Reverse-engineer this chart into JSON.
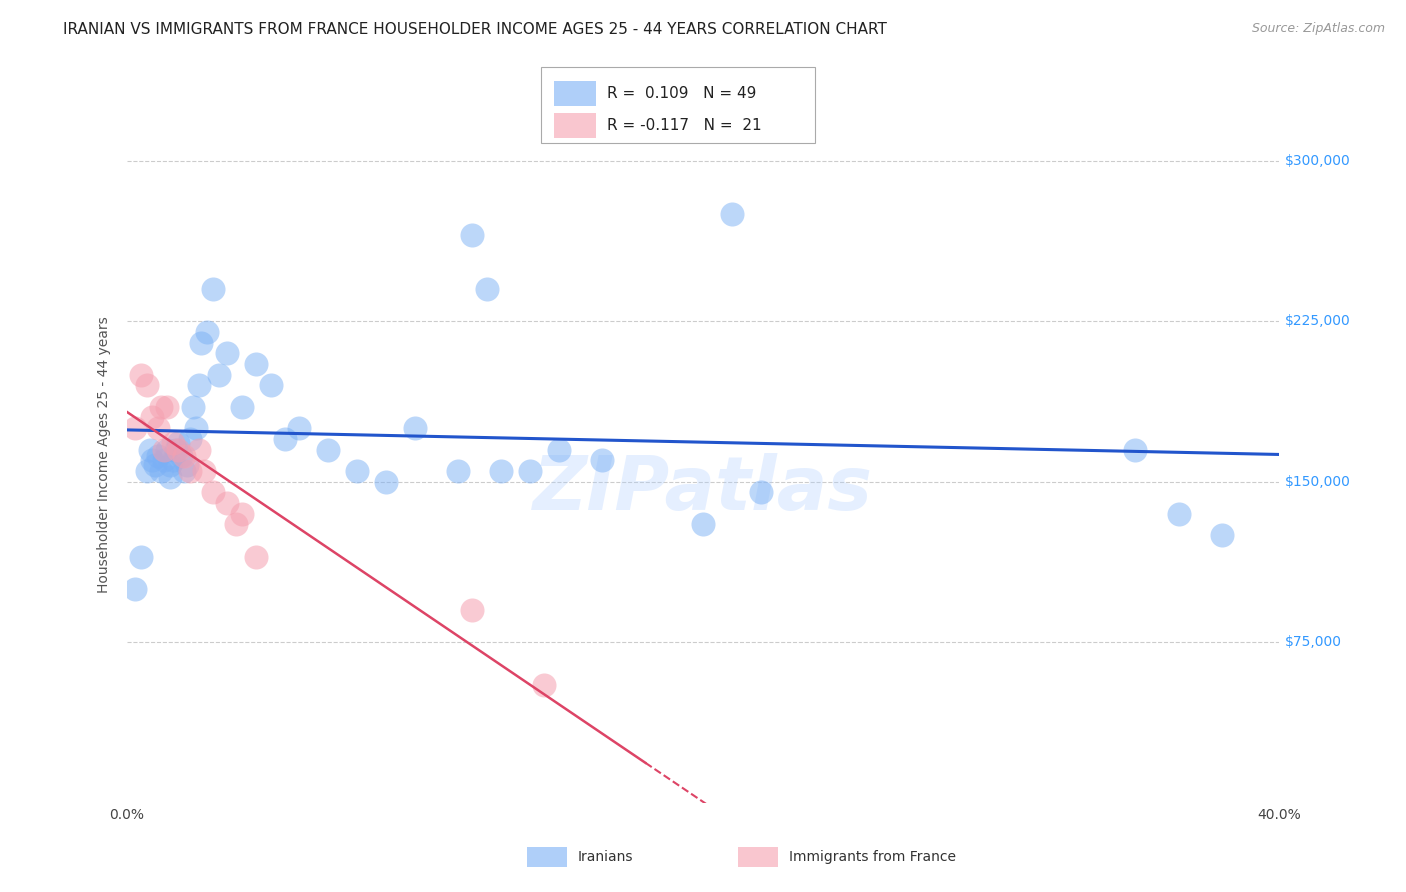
{
  "title": "IRANIAN VS IMMIGRANTS FROM FRANCE HOUSEHOLDER INCOME AGES 25 - 44 YEARS CORRELATION CHART",
  "source": "Source: ZipAtlas.com",
  "ylabel": "Householder Income Ages 25 - 44 years",
  "xlim": [
    0.0,
    0.4
  ],
  "ylim": [
    0,
    325000
  ],
  "yticks": [
    75000,
    150000,
    225000,
    300000
  ],
  "ytick_labels": [
    "$75,000",
    "$150,000",
    "$225,000",
    "$300,000"
  ],
  "xticks": [
    0.0,
    0.05,
    0.1,
    0.15,
    0.2,
    0.25,
    0.3,
    0.35,
    0.4
  ],
  "xtick_labels": [
    "0.0%",
    "",
    "",
    "",
    "",
    "",
    "",
    "",
    "40.0%"
  ],
  "background_color": "#ffffff",
  "grid_color": "#cccccc",
  "blue_color": "#7ab0f5",
  "blue_line_color": "#2255cc",
  "pink_color": "#f5a0b0",
  "pink_line_color": "#dd4466",
  "watermark": "ZIPatlas",
  "iranians_x": [
    0.003,
    0.005,
    0.007,
    0.008,
    0.009,
    0.01,
    0.011,
    0.012,
    0.013,
    0.014,
    0.015,
    0.015,
    0.016,
    0.017,
    0.018,
    0.019,
    0.02,
    0.021,
    0.022,
    0.023,
    0.024,
    0.025,
    0.026,
    0.028,
    0.03,
    0.032,
    0.035,
    0.04,
    0.045,
    0.05,
    0.055,
    0.06,
    0.07,
    0.08,
    0.09,
    0.1,
    0.115,
    0.12,
    0.125,
    0.13,
    0.14,
    0.15,
    0.165,
    0.2,
    0.21,
    0.22,
    0.35,
    0.365,
    0.38
  ],
  "iranians_y": [
    100000,
    115000,
    155000,
    165000,
    160000,
    158000,
    162000,
    155000,
    160000,
    165000,
    158000,
    152000,
    160000,
    165000,
    168000,
    162000,
    155000,
    158000,
    170000,
    185000,
    175000,
    195000,
    215000,
    220000,
    240000,
    200000,
    210000,
    185000,
    205000,
    195000,
    170000,
    175000,
    165000,
    155000,
    150000,
    175000,
    155000,
    265000,
    240000,
    155000,
    155000,
    165000,
    160000,
    130000,
    275000,
    145000,
    165000,
    135000,
    125000
  ],
  "france_x": [
    0.003,
    0.005,
    0.007,
    0.009,
    0.011,
    0.012,
    0.013,
    0.014,
    0.016,
    0.018,
    0.02,
    0.022,
    0.025,
    0.027,
    0.03,
    0.035,
    0.038,
    0.04,
    0.045,
    0.12,
    0.145
  ],
  "france_y": [
    175000,
    200000,
    195000,
    180000,
    175000,
    185000,
    165000,
    185000,
    168000,
    165000,
    162000,
    155000,
    165000,
    155000,
    145000,
    140000,
    130000,
    135000,
    115000,
    90000,
    55000
  ],
  "title_fontsize": 11,
  "axis_label_fontsize": 10,
  "tick_fontsize": 10,
  "legend_fontsize": 11,
  "source_fontsize": 9,
  "right_tick_color": "#3399ff"
}
